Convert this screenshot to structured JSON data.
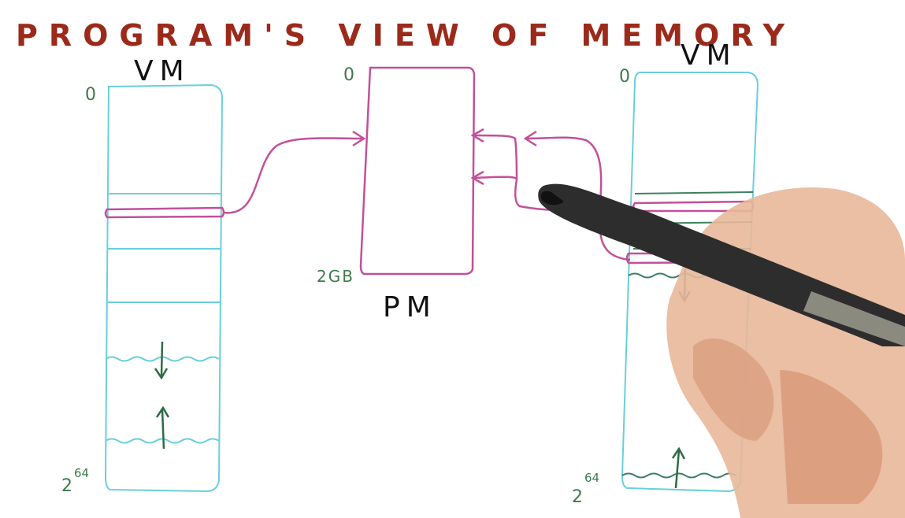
{
  "title": "PROGRAM'S VIEW OF MEMORY",
  "left_vm": {
    "label": "VM",
    "top_addr": "0",
    "bottom_addr_base": "2",
    "bottom_addr_exp": "64"
  },
  "pm": {
    "label": "PM",
    "top_addr": "0",
    "bottom_addr": "2GB"
  },
  "right_vm": {
    "label": "VM",
    "top_addr": "0",
    "bottom_addr_base": "2",
    "bottom_addr_exp": "64"
  },
  "colors": {
    "title": "#9b2a1b",
    "vm_outline": "#69cfdc",
    "pm_outline": "#c2509a",
    "addr": "#3e7a4a",
    "mapping_arrow": "#c2509a",
    "label": "#111111"
  }
}
